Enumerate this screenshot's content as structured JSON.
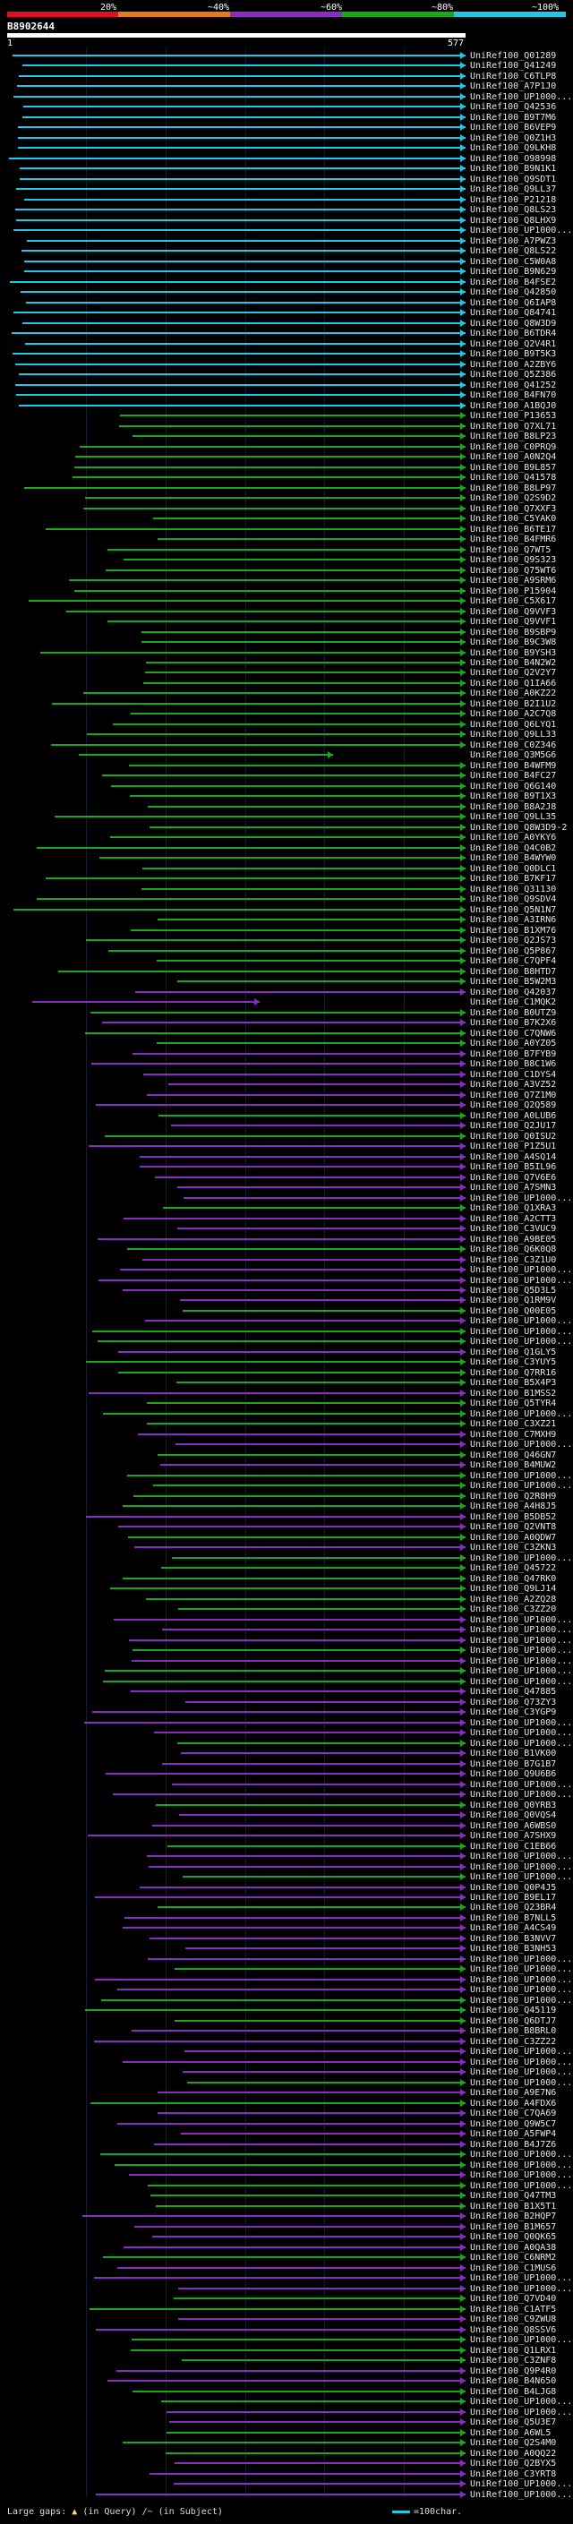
{
  "scale": {
    "labels": [
      "20%",
      "~40%",
      "~60%",
      "~80%",
      "~100%"
    ],
    "colors": [
      "#e0101e",
      "#e57a17",
      "#8a2cc2",
      "#1aa81a",
      "#1ec8e8"
    ]
  },
  "query": {
    "title": "B8902644",
    "start": "1",
    "end": "577"
  },
  "hits": [
    "UniRef100_Q01289",
    "UniRef100_Q41249",
    "UniRef100_C6TLP8",
    "UniRef100_A7P1J0",
    "UniRef100_UP1000...",
    "UniRef100_Q42536",
    "UniRef100_B9T7M6",
    "UniRef100_B6VEP9",
    "UniRef100_Q0Z1H3",
    "UniRef100_Q9LKH8",
    "UniRef100_O98998",
    "UniRef100_B9N1K1",
    "UniRef100_Q9SDT1",
    "UniRef100_Q9LL37",
    "UniRef100_P21218",
    "UniRef100_Q8LS23",
    "UniRef100_Q8LHX9",
    "UniRef100_UP1000...",
    "UniRef100_A7PWZ3",
    "UniRef100_Q8LS22",
    "UniRef100_C5W0A8",
    "UniRef100_B9N629",
    "UniRef100_B4FSE2",
    "UniRef100_Q42850",
    "UniRef100_Q6IAP8",
    "UniRef100_Q84741",
    "UniRef100_Q8W3D9",
    "UniRef100_B6TDR4",
    "UniRef100_Q2V4R1",
    "UniRef100_B9T5K3",
    "UniRef100_A2ZBY6",
    "UniRef100_Q5Z386",
    "UniRef100_Q41252",
    "UniRef100_B4FN70",
    "UniRef100_A1BQJ0",
    "UniRef100_P13653",
    "UniRef100_Q7XL71",
    "UniRef100_B8LP23",
    "UniRef100_C0PRQ9",
    "UniRef100_A0N2Q4",
    "UniRef100_B9L857",
    "UniRef100_Q41578",
    "UniRef100_B8LP97",
    "UniRef100_Q2S9D2",
    "UniRef100_Q7XXF3",
    "UniRef100_C5YAK0",
    "UniRef100_B6TE17",
    "UniRef100_B4FMR6",
    "UniRef100_Q7WT5",
    "UniRef100_Q9S323",
    "UniRef100_Q75WT6",
    "UniRef100_A9SRM6",
    "UniRef100_P15904",
    "UniRef100_C5X617",
    "UniRef100_Q9VVF3",
    "UniRef100_Q9VVF1",
    "UniRef100_B9SBP9",
    "UniRef100_B9C3W8",
    "UniRef100_B9YSH3",
    "UniRef100_B4N2W2",
    "UniRef100_Q2V2Y7",
    "UniRef100_Q1IA66",
    "UniRef100_A0KZ22",
    "UniRef100_B2I1U2",
    "UniRef100_A2C7Q8",
    "UniRef100_Q6LYQ1",
    "UniRef100_Q9LL33",
    "UniRef100_C0Z346",
    "UniRef100_Q3M5G6",
    "UniRef100_B4WFM9",
    "UniRef100_B4FC27",
    "UniRef100_Q6G140",
    "UniRef100_B9T1X3",
    "UniRef100_B8A2J8",
    "UniRef100_Q9LL35",
    "UniRef100_Q8W3D9-2",
    "UniRef100_A0YKY6",
    "UniRef100_Q4C0B2",
    "UniRef100_B4WYW0",
    "UniRef100_Q0DLC1",
    "UniRef100_B7KF17",
    "UniRef100_Q31130",
    "UniRef100_Q9SDV4",
    "UniRef100_Q5N1N7",
    "UniRef100_A3IRN6",
    "UniRef100_B1XM76",
    "UniRef100_Q2JS73",
    "UniRef100_Q5P867",
    "UniRef100_C7QPF4",
    "UniRef100_B8HTD7",
    "UniRef100_B5W2M3",
    "UniRef100_Q42037",
    "UniRef100_C1MQK2",
    "UniRef100_B0UTZ9",
    "UniRef100_B7K2X6",
    "UniRef100_C7QNW6",
    "UniRef100_A0YZ05",
    "UniRef100_B7FYB9",
    "UniRef100_B8C1W6",
    "UniRef100_C1DYS4",
    "UniRef100_A3VZ52",
    "UniRef100_Q7Z1M0",
    "UniRef100_Q2Q589",
    "UniRef100_A0LUB6",
    "UniRef100_Q2JU17",
    "UniRef100_Q0ISU2",
    "UniRef100_P1Z5U1",
    "UniRef100_A4SQ14",
    "UniRef100_B5IL96",
    "UniRef100_Q7V6E6",
    "UniRef100_A7SMN3",
    "UniRef100_UP1000...",
    "UniRef100_Q1XRA3",
    "UniRef100_A2CTT3",
    "UniRef100_C3VUC9",
    "UniRef100_A9BE05",
    "UniRef100_Q6K0Q8",
    "UniRef100_C3Z1U0",
    "UniRef100_UP1000...",
    "UniRef100_UP1000...",
    "UniRef100_Q5D3L5",
    "UniRef100_Q1RM9V",
    "UniRef100_Q00E05",
    "UniRef100_UP1000...",
    "UniRef100_UP1000...",
    "UniRef100_UP1000...",
    "UniRef100_Q1GLY5",
    "UniRef100_C3YUY5",
    "UniRef100_Q7RR16",
    "UniRef100_B5X4P3",
    "UniRef100_B1MSS2",
    "UniRef100_Q5TYR4",
    "UniRef100_UP1000...",
    "UniRef100_C3XZ21",
    "UniRef100_C7MXH9",
    "UniRef100_UP1000...",
    "UniRef100_Q46GN7",
    "UniRef100_B4MUW2",
    "UniRef100_UP1000...",
    "UniRef100_UP1000...",
    "UniRef100_Q2R8H9",
    "UniRef100_A4H8J5",
    "UniRef100_B5DB52",
    "UniRef100_Q2VNT8",
    "UniRef100_A0QDW7",
    "UniRef100_C3ZKN3",
    "UniRef100_UP1000...",
    "UniRef100_Q45722",
    "UniRef100_Q47RK0",
    "UniRef100_Q9LJ14",
    "UniRef100_A2ZQ28",
    "UniRef100_C3ZZ20",
    "UniRef100_UP1000...",
    "UniRef100_UP1000...",
    "UniRef100_UP1000...",
    "UniRef100_UP1000...",
    "UniRef100_UP1000...",
    "UniRef100_UP1000...",
    "UniRef100_UP1000...",
    "UniRef100_Q47885",
    "UniRef100_Q73ZY3",
    "UniRef100_C3YGP9",
    "UniRef100_UP1000...",
    "UniRef100_UP1000...",
    "UniRef100_UP1000...",
    "UniRef100_B1VK00",
    "UniRef100_B7G1B7",
    "UniRef100_Q9U6B6",
    "UniRef100_UP1000...",
    "UniRef100_UP1000...",
    "UniRef100_Q0YRB3",
    "UniRef100_Q0VQS4",
    "UniRef100_A6WBS0",
    "UniRef100_A7SHX9",
    "UniRef100_C1EB66",
    "UniRef100_UP1000...",
    "UniRef100_UP1000...",
    "UniRef100_UP1000...",
    "UniRef100_Q0P4J5",
    "UniRef100_B9EL17",
    "UniRef100_Q23BR4",
    "UniRef100_B7NLL5",
    "UniRef100_A4CS49",
    "UniRef100_B3NVV7",
    "UniRef100_B3NH53",
    "UniRef100_UP1000...",
    "UniRef100_UP1000...",
    "UniRef100_UP1000...",
    "UniRef100_UP1000...",
    "UniRef100_UP1000...",
    "UniRef100_Q45119",
    "UniRef100_Q6DTJ7",
    "UniRef100_B8BRL0",
    "UniRef100_C3ZZ22",
    "UniRef100_UP1000...",
    "UniRef100_UP1000...",
    "UniRef100_UP1000...",
    "UniRef100_UP1000...",
    "UniRef100_A9E7N6",
    "UniRef100_A4FDX6",
    "UniRef100_C7QA69",
    "UniRef100_Q9W5C7",
    "UniRef100_A5FWP4",
    "UniRef100_B4J7Z6",
    "UniRef100_UP1000...",
    "UniRef100_UP1000...",
    "UniRef100_UP1000...",
    "UniRef100_UP1000...",
    "UniRef100_Q47TM3",
    "UniRef100_B1X5T1",
    "UniRef100_B2HQP7",
    "UniRef100_B1M657",
    "UniRef100_Q0QK65",
    "UniRef100_A0QA38",
    "UniRef100_C6NRM2",
    "UniRef100_C1MUS6",
    "UniRef100_UP1000...",
    "UniRef100_UP1000...",
    "UniRef100_Q7VD40",
    "UniRef100_C1ATF5",
    "UniRef100_C9ZWU8",
    "UniRef100_Q8SSV6",
    "UniRef100_UP1000...",
    "UniRef100_Q1LRX1",
    "UniRef100_C3ZNF8",
    "UniRef100_Q9P4R0",
    "UniRef100_B4N650",
    "UniRef100_B4LJG8",
    "UniRef100_UP1000...",
    "UniRef100_UP1000...",
    "UniRef100_Q5U3E7",
    "UniRef100_A6WL5",
    "UniRef100_Q2S4M0",
    "UniRef100_A0QQ22",
    "UniRef100_Q2BYX5",
    "UniRef100_C3YRT8",
    "UniRef100_UP1000...",
    "UniRef100_UP1000..."
  ],
  "legend": {
    "large_gaps_label": "Large gaps:",
    "in_query": "(in Query)",
    "in_subject": "/~ (in Subject)",
    "scale_note": "=100char."
  }
}
